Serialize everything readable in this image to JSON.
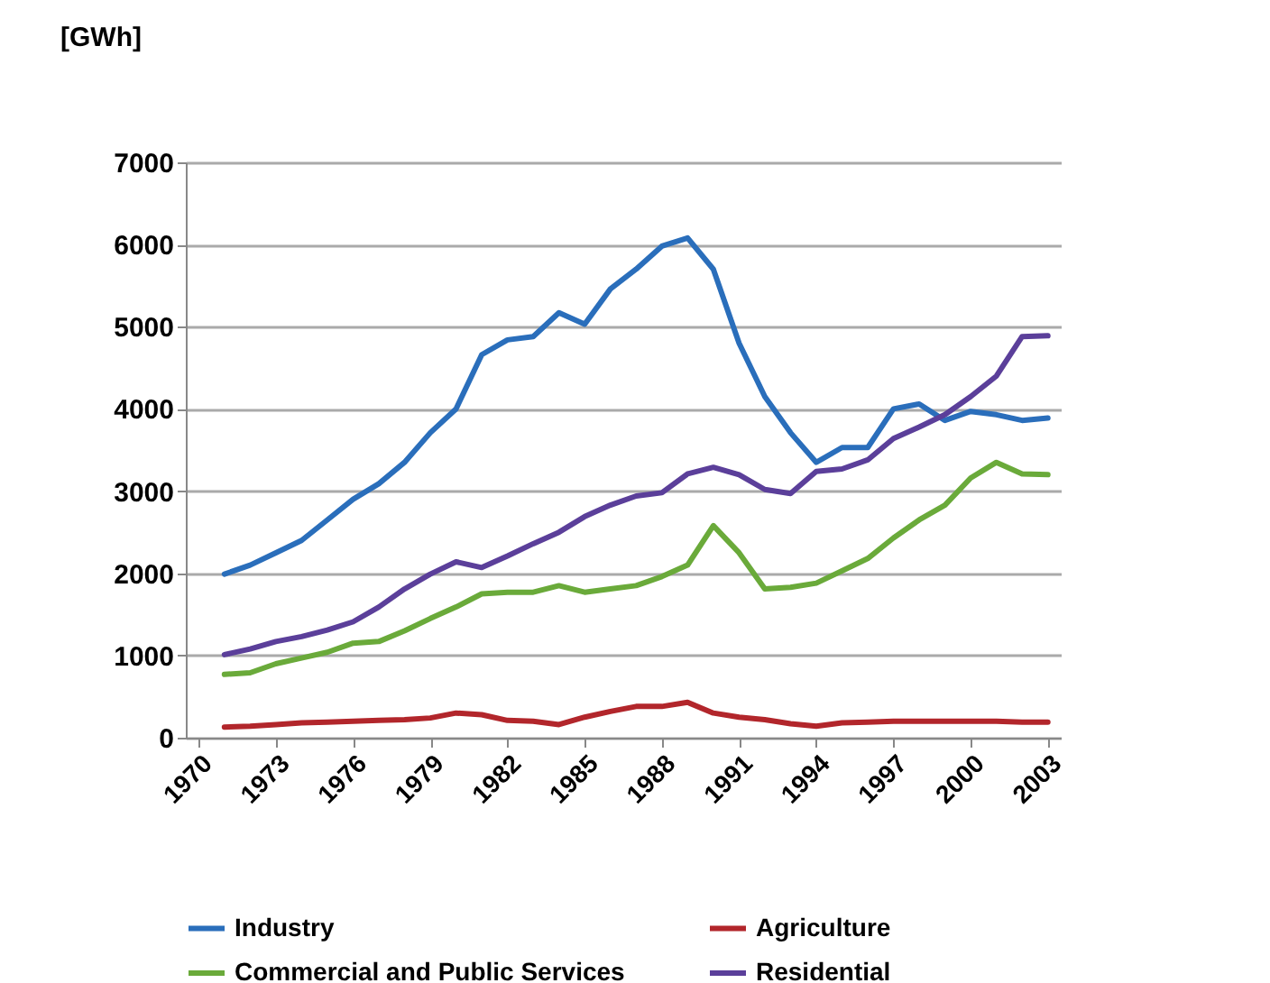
{
  "chart_data": {
    "type": "line",
    "ylabel": "[GWh]",
    "x": [
      1971,
      1972,
      1973,
      1974,
      1975,
      1976,
      1977,
      1978,
      1979,
      1980,
      1981,
      1982,
      1983,
      1984,
      1985,
      1986,
      1987,
      1988,
      1989,
      1990,
      1991,
      1992,
      1993,
      1994,
      1995,
      1996,
      1997,
      1998,
      1999,
      2000,
      2001,
      2002,
      2003
    ],
    "series": [
      {
        "name": "Industry",
        "color": "#2a6ebb",
        "values": [
          1990,
          2100,
          2250,
          2400,
          2650,
          2900,
          3090,
          3350,
          3710,
          4000,
          4660,
          4840,
          4880,
          5170,
          5030,
          5460,
          5700,
          5980,
          6080,
          5700,
          4800,
          4150,
          3710,
          3350,
          3530,
          3530,
          4000,
          4060,
          3860,
          3970,
          3930,
          3860,
          3890
        ]
      },
      {
        "name": "Agriculture",
        "color": "#b2262b",
        "values": [
          130,
          140,
          160,
          180,
          190,
          200,
          210,
          220,
          240,
          300,
          280,
          210,
          200,
          160,
          250,
          320,
          380,
          380,
          430,
          300,
          250,
          220,
          170,
          140,
          180,
          190,
          200,
          200,
          200,
          200,
          200,
          190,
          190
        ]
      },
      {
        "name": "Commercial and Public Services",
        "color": "#6aaa3a",
        "values": [
          770,
          790,
          900,
          970,
          1040,
          1150,
          1170,
          1300,
          1450,
          1590,
          1750,
          1770,
          1770,
          1850,
          1770,
          1810,
          1850,
          1960,
          2100,
          2580,
          2250,
          1810,
          1830,
          1880,
          2030,
          2180,
          2430,
          2650,
          2830,
          3160,
          3350,
          3210,
          3200
        ]
      },
      {
        "name": "Residential",
        "color": "#5b3f9a",
        "values": [
          1010,
          1080,
          1170,
          1230,
          1310,
          1410,
          1590,
          1810,
          1990,
          2140,
          2070,
          2210,
          2360,
          2500,
          2690,
          2830,
          2940,
          2980,
          3210,
          3290,
          3200,
          3020,
          2970,
          3240,
          3270,
          3380,
          3640,
          3780,
          3930,
          4150,
          4400,
          4880,
          4890
        ]
      }
    ],
    "xlim": [
      1969.5,
      2003.5
    ],
    "xticks": [
      1970,
      1973,
      1976,
      1979,
      1982,
      1985,
      1988,
      1991,
      1994,
      1997,
      2000,
      2003
    ],
    "ylim": [
      0,
      7000
    ],
    "yticks": [
      0,
      1000,
      2000,
      3000,
      4000,
      5000,
      6000,
      7000
    ],
    "grid": "y",
    "legend": "bottom"
  }
}
